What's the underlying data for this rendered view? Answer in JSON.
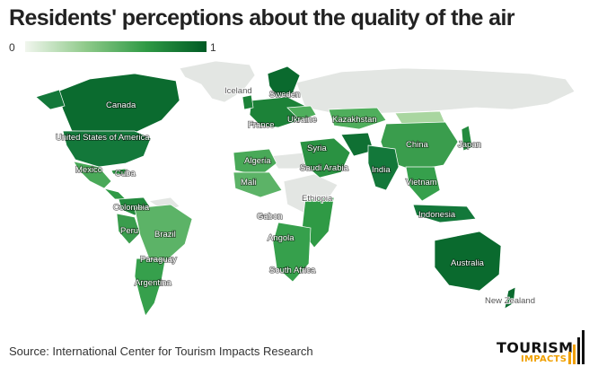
{
  "title": "Residents' perceptions about the quality of the air",
  "legend": {
    "min_label": "0",
    "max_label": "1",
    "colors": [
      "#f1f6ee",
      "#8fca8a",
      "#2f9a45",
      "#005a24"
    ]
  },
  "map": {
    "no_data_color": "#e3e6e3",
    "labels": [
      "Iceland",
      "Sweden",
      "Canada",
      "Ukraine",
      "Kazakhstan",
      "France",
      "United States of America",
      "China",
      "Japan",
      "Syria",
      "Algeria",
      "Saudi Arabia",
      "India",
      "Mexico",
      "Cuba",
      "Mali",
      "Vietnam",
      "Ethiopia",
      "Colombia",
      "Gabon",
      "Indonesia",
      "Peru",
      "Brazil",
      "Angola",
      "Paraguay",
      "Australia",
      "South Africa",
      "Argentina",
      "New Zealand"
    ]
  },
  "source": "Source: International Center for Tourism Impacts Research",
  "logo": {
    "line1": "TOURISM",
    "line2": "IMPACTS"
  }
}
